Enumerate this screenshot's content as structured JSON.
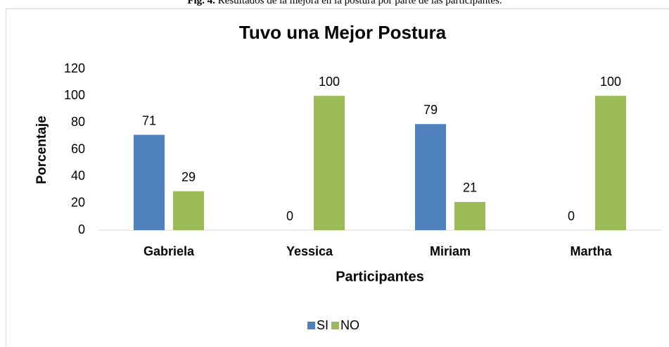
{
  "caption": {
    "label": "Fig. 4.",
    "text": "Resultados de la mejora en la postura por parte de las participantes."
  },
  "chart_data": {
    "type": "bar",
    "title": "Tuvo una Mejor Postura",
    "x_label": "Participantes",
    "y_label": "Porcentaje",
    "categories": [
      "Gabriela",
      "Yessica",
      "Miriam",
      "Martha"
    ],
    "series": [
      {
        "name": "SI",
        "color": "#4f81bd",
        "values": [
          71,
          0,
          79,
          0
        ]
      },
      {
        "name": "NO",
        "color": "#9bbb59",
        "values": [
          29,
          100,
          21,
          100
        ]
      }
    ],
    "ylim": [
      0,
      120
    ],
    "yticks": [
      0,
      20,
      40,
      60,
      80,
      100,
      120
    ],
    "grid": false,
    "legend": "bottom"
  }
}
